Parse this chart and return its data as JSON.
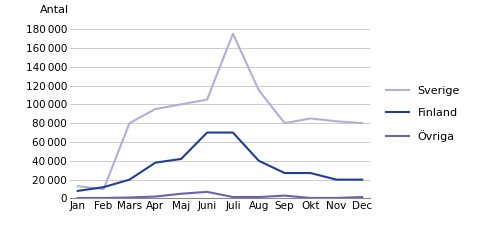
{
  "months": [
    "Jan",
    "Feb",
    "Mars",
    "Apr",
    "Maj",
    "Juni",
    "Juli",
    "Aug",
    "Sep",
    "Okt",
    "Nov",
    "Dec"
  ],
  "sverige": [
    13000,
    10000,
    80000,
    95000,
    100000,
    105000,
    175000,
    115000,
    80000,
    85000,
    82000,
    80000
  ],
  "finland": [
    8000,
    12000,
    20000,
    38000,
    42000,
    70000,
    70000,
    40000,
    27000,
    27000,
    20000,
    20000
  ],
  "ovriga": [
    500,
    500,
    1000,
    2000,
    5000,
    7000,
    1500,
    1500,
    3000,
    500,
    500,
    1500
  ],
  "sverige_color": "#b3aed6",
  "finland_color": "#1f3d99",
  "ovriga_color": "#7060aa",
  "ylim": [
    0,
    180000
  ],
  "yticks": [
    0,
    20000,
    40000,
    60000,
    80000,
    100000,
    120000,
    140000,
    160000,
    180000
  ],
  "legend_labels": [
    "Sverige",
    "Finland",
    "Övriga"
  ],
  "ylabel": "Antal"
}
